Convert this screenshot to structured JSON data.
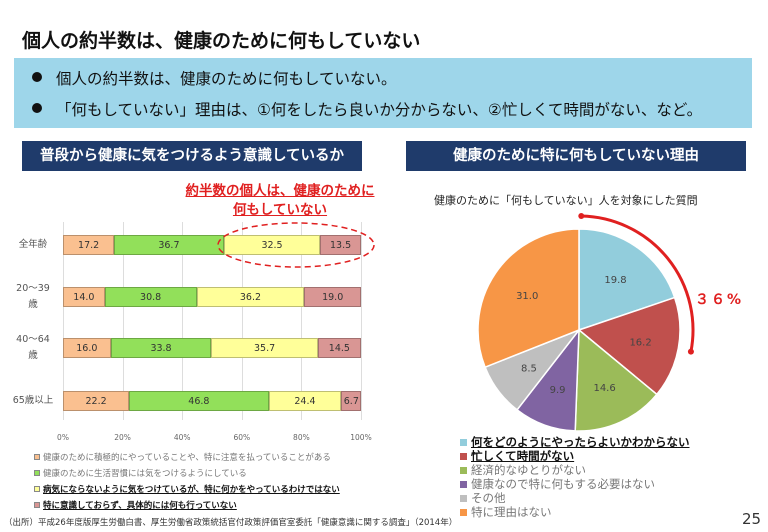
{
  "title": "個人の約半数は、健康のために何もしていない",
  "bullets": [
    "個人の約半数は、健康のために何もしていない。",
    "「何もしていない」理由は、①何をしたら良いか分からない、②忙しくて時間がない、など。"
  ],
  "left_header": "普段から健康に気をつけるよう意識しているか",
  "right_header": "健康のために特に何もしていない理由",
  "callout": [
    "約半数の個人は、健康のために",
    "何もしていない"
  ],
  "chart_data": [
    {
      "type": "bar",
      "stacked": true,
      "orientation": "horizontal",
      "categories": [
        "全年齢",
        "20～39歳",
        "40～64歳",
        "65歳以上"
      ],
      "category_lines": [
        [
          "全年齢"
        ],
        [
          "20～39",
          "歳"
        ],
        [
          "40～64",
          "歳"
        ],
        [
          "65歳以上"
        ]
      ],
      "series": [
        {
          "name": "健康のために積極的にやっていることや、特に注意を払っていることがある",
          "values": [
            17.2,
            14.0,
            16.0,
            22.2
          ],
          "color": "#FAC090",
          "bold": false
        },
        {
          "name": "健康のために生活習慣には気をつけるようにしている",
          "values": [
            36.7,
            30.8,
            33.8,
            46.8
          ],
          "color": "#92E05A",
          "bold": false
        },
        {
          "name": "病気にならないように気をつけているが、特に何かをやっているわけではない",
          "values": [
            32.5,
            36.2,
            35.7,
            24.4
          ],
          "color": "#FFFF99",
          "bold": true
        },
        {
          "name": "特に意識しておらず、具体的には何も行っていない",
          "values": [
            13.5,
            19.0,
            14.5,
            6.7
          ],
          "color": "#D99694",
          "bold": true
        }
      ],
      "xticks": [
        "0%",
        "20%",
        "40%",
        "60%",
        "80%",
        "100%"
      ],
      "xlim": [
        0,
        100
      ],
      "grid": true,
      "legend": "bottom"
    },
    {
      "type": "pie",
      "title": "健康のために「何もしていない」人を対象にした質問",
      "slices": [
        {
          "label": "何をどのようにやったらよいかわからない",
          "value": 19.8,
          "color": "#92CDDC",
          "bold": true
        },
        {
          "label": "忙しくて時間がない",
          "value": 16.2,
          "color": "#C0504D",
          "bold": true
        },
        {
          "label": "経済的なゆとりがない",
          "value": 14.6,
          "color": "#9BBB59",
          "bold": false
        },
        {
          "label": "健康なので特に何もする必要はない",
          "value": 9.9,
          "color": "#8064A2",
          "bold": false
        },
        {
          "label": "その他",
          "value": 8.5,
          "color": "#BFBFBF",
          "bold": false
        },
        {
          "label": "特に理由はない",
          "value": 31.0,
          "color": "#F79646",
          "bold": false
        }
      ],
      "annotation": "３６%",
      "annotation_color": "#E02020",
      "legend": "bottom"
    }
  ],
  "source": "（出所）平成26年度版厚生労働白書、厚生労働省政策統括官付政策評価官室委託「健康意識に関する調査」（2014年）",
  "page_number": "25"
}
